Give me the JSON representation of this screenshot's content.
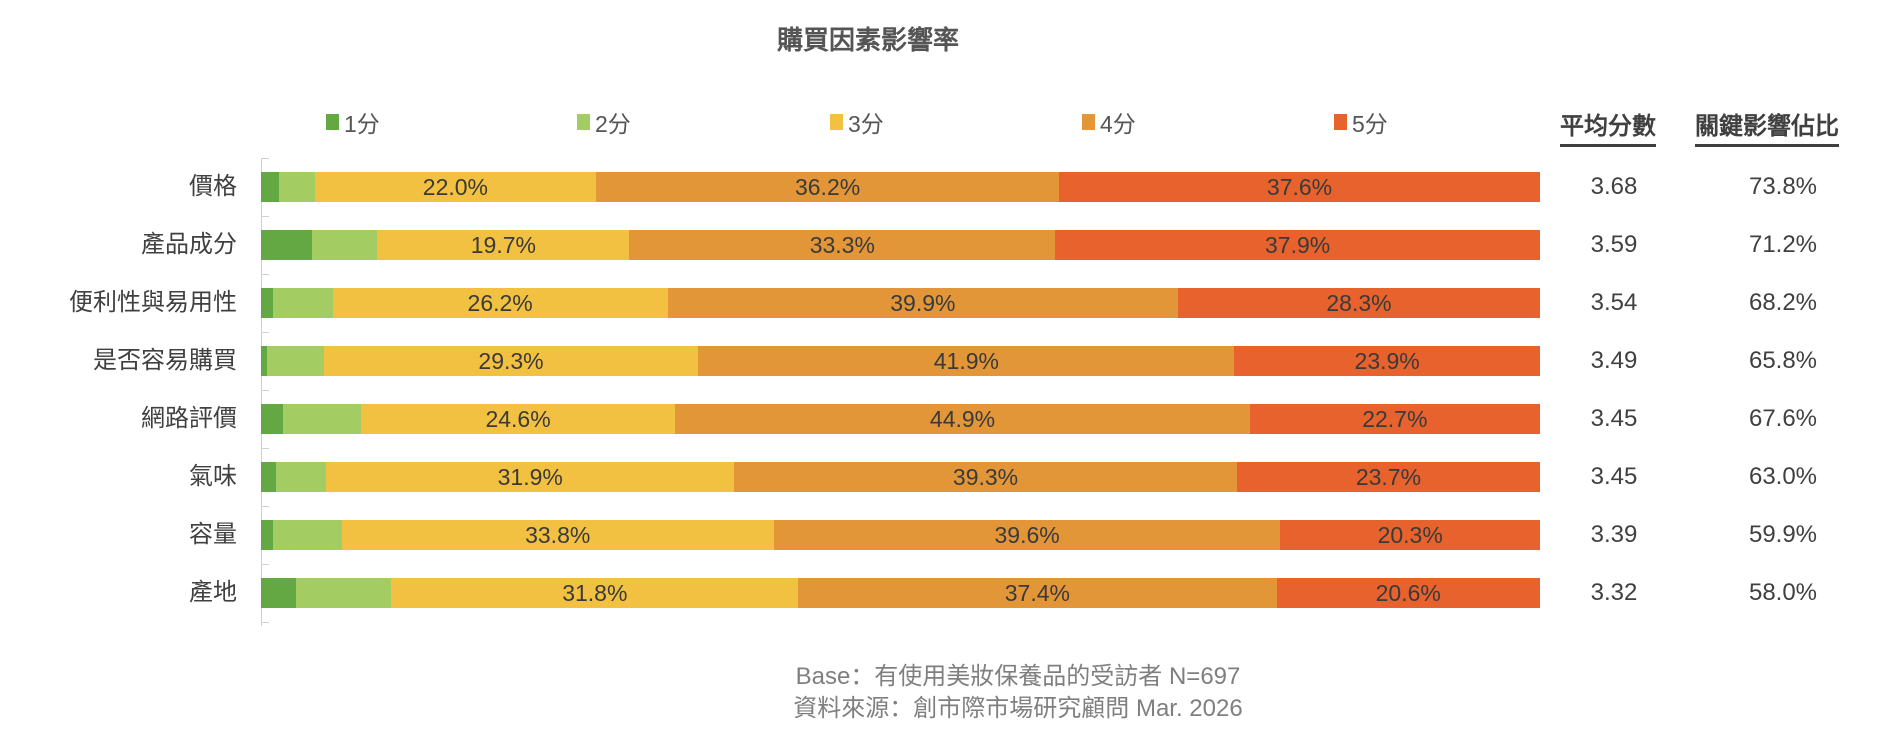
{
  "chart_data": {
    "type": "bar",
    "orientation": "horizontal-stacked-100",
    "title": "購買因素影響率",
    "categories": [
      "價格",
      "產品成分",
      "便利性與易用性",
      "是否容易購買",
      "網路評價",
      "氣味",
      "容量",
      "產地"
    ],
    "series": [
      {
        "name": "1分",
        "color": "#64a844",
        "show_labels": false,
        "values": [
          1.4,
          4.0,
          0.9,
          0.5,
          1.7,
          1.2,
          0.9,
          2.7
        ]
      },
      {
        "name": "2分",
        "color": "#a3cd62",
        "show_labels": false,
        "values": [
          2.8,
          5.1,
          4.7,
          4.4,
          6.1,
          3.9,
          5.4,
          7.5
        ]
      },
      {
        "name": "3分",
        "color": "#f3c141",
        "show_labels": true,
        "values": [
          22.0,
          19.7,
          26.2,
          29.3,
          24.6,
          31.9,
          33.8,
          31.8
        ]
      },
      {
        "name": "4分",
        "color": "#e39638",
        "show_labels": true,
        "values": [
          36.2,
          33.3,
          39.9,
          41.9,
          44.9,
          39.3,
          39.6,
          37.4
        ]
      },
      {
        "name": "5分",
        "color": "#e7622d",
        "show_labels": true,
        "values": [
          37.6,
          37.9,
          28.3,
          23.9,
          22.7,
          23.7,
          20.3,
          20.6
        ]
      }
    ],
    "xlim": [
      0,
      100
    ],
    "legend": "top",
    "grid": false,
    "side_columns": [
      {
        "header": "平均分數",
        "values": [
          "3.68",
          "3.59",
          "3.54",
          "3.49",
          "3.45",
          "3.45",
          "3.39",
          "3.32"
        ]
      },
      {
        "header": "關鍵影響佔比",
        "values": [
          "73.8%",
          "71.2%",
          "68.2%",
          "65.8%",
          "67.6%",
          "63.0%",
          "59.9%",
          "58.0%"
        ]
      }
    ]
  },
  "footer": {
    "base": "Base：有使用美妝保養品的受訪者 N=697",
    "source": "資料來源：創市際市場研究顧問 Mar. 2026"
  }
}
